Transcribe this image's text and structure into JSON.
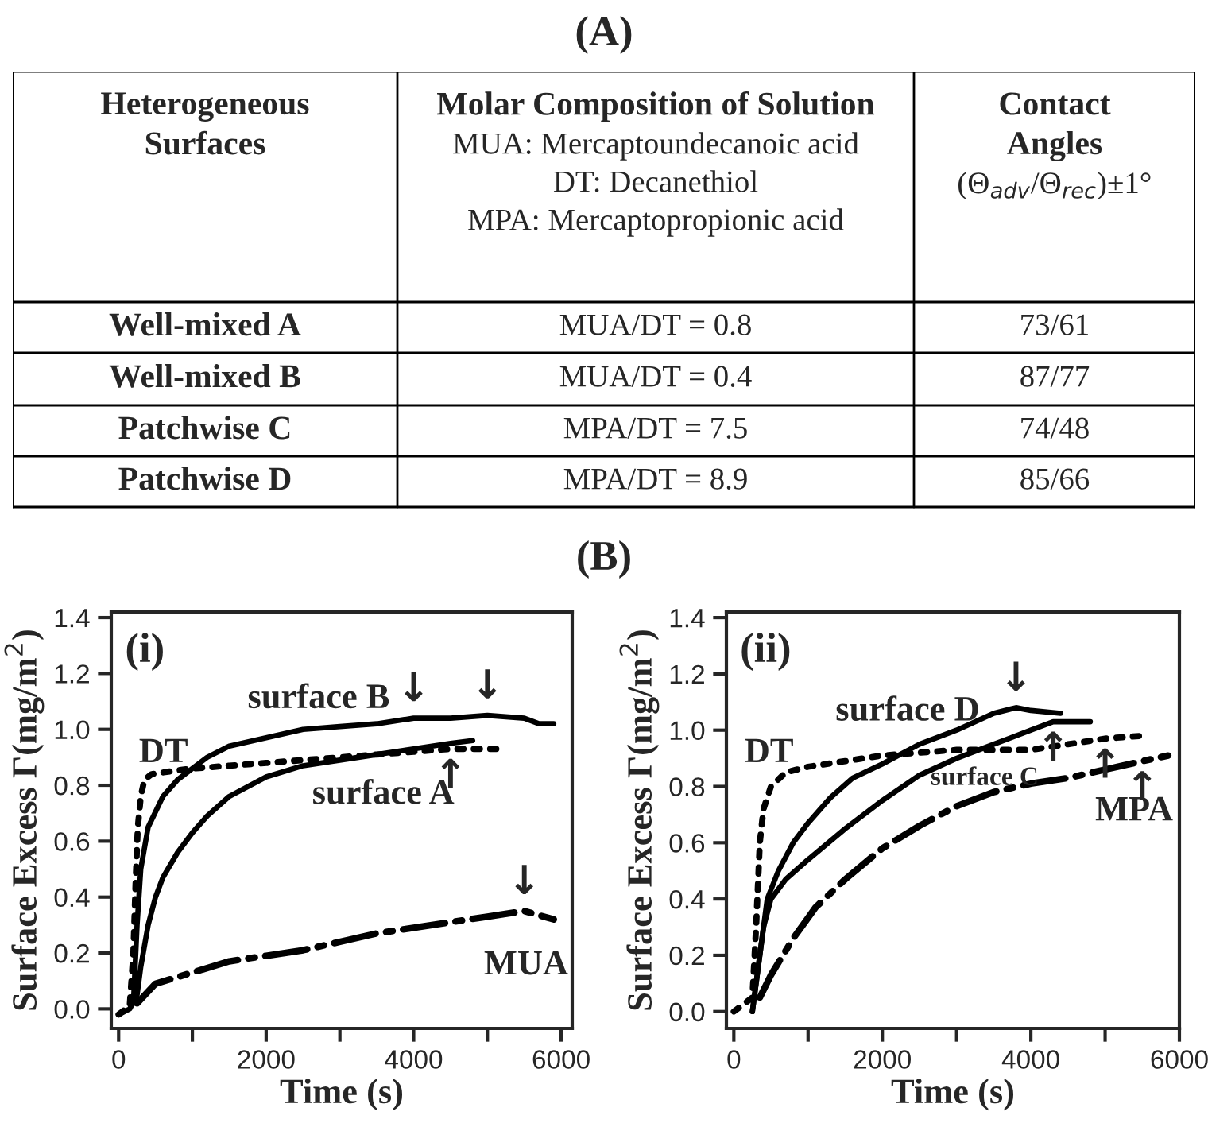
{
  "chart_data": [
    {
      "type": "other",
      "title": "(A)",
      "annotations": [
        "Heterogeneous\nSurfaces",
        "Molar Composition of Solution\nMUA: Mercaptoundecanoic acid\nDT: Decanethiol\nMPA: Mercaptopropionic acid",
        "Contact\nAngles\n(Θ$_{adv}$/Θ$_{rec}$)±1°",
        "Well-mixed A",
        "MUA/DT = 0.8",
        "73/61",
        "Well-mixed B",
        "MUA/DT = 0.4",
        "87/77",
        "Patchwise C",
        "MPA/DT = 7.5",
        "74/48",
        "Patchwise D",
        "MPA/DT = 8.9",
        "85/66"
      ]
    },
    {
      "type": "line",
      "title": "(B)",
      "xlabel": "Time (s)",
      "ylabel": "Surface Excess Γ(mg/m$^{2}$)",
      "xlim": [
        -100,
        6150
      ],
      "ylim": [
        -0.07,
        1.42
      ],
      "xticks": [
        0,
        {
          "value": 1000,
          "label": null
        },
        2000,
        {
          "value": 3000,
          "label": null
        },
        4000,
        {
          "value": 5000,
          "label": null
        },
        6000
      ],
      "yticks": [
        {
          "value": 0,
          "label": "0.0"
        },
        {
          "value": 0.2,
          "label": "0.2"
        },
        {
          "value": 0.4,
          "label": "0.4"
        },
        {
          "value": 0.6,
          "label": "0.6"
        },
        {
          "value": 0.8,
          "label": "0.8"
        },
        {
          "value": 1.0,
          "label": "1.0"
        },
        {
          "value": 1.2,
          "label": "1.2"
        },
        {
          "value": 1.4,
          "label": "1.4"
        }
      ],
      "grid": false,
      "legend": false,
      "series": [
        {
          "name": "DT",
          "color": "#000000",
          "line_style": "dotted",
          "x": [
            0,
            100,
            150,
            200,
            230,
            260,
            300,
            350,
            450,
            700,
            1000,
            1500,
            2000,
            2500,
            3000,
            3500,
            4000,
            4500,
            5200
          ],
          "values": [
            -0.02,
            0,
            0.01,
            0.2,
            0.45,
            0.65,
            0.76,
            0.82,
            0.84,
            0.85,
            0.86,
            0.87,
            0.88,
            0.89,
            0.9,
            0.91,
            0.92,
            0.93,
            0.93
          ]
        },
        {
          "name": "surface B",
          "color": "#000000",
          "line_style": "solid",
          "x": [
            200,
            250,
            300,
            400,
            600,
            800,
            1000,
            1200,
            1500,
            2000,
            2500,
            3000,
            3500,
            4000,
            4500,
            5000,
            5500,
            5700,
            5900
          ],
          "values": [
            0.02,
            0.3,
            0.5,
            0.65,
            0.76,
            0.82,
            0.86,
            0.9,
            0.94,
            0.97,
            1.0,
            1.01,
            1.02,
            1.04,
            1.04,
            1.05,
            1.04,
            1.02,
            1.02
          ]
        },
        {
          "name": "surface A",
          "color": "#000000",
          "line_style": "solid",
          "x": [
            0,
            150,
            250,
            300,
            400,
            500,
            600,
            800,
            1000,
            1200,
            1500,
            2000,
            2500,
            3000,
            3500,
            4000,
            4500,
            4800
          ],
          "values": [
            -0.02,
            0,
            0.05,
            0.15,
            0.3,
            0.4,
            0.47,
            0.56,
            0.63,
            0.69,
            0.76,
            0.83,
            0.87,
            0.89,
            0.91,
            0.93,
            0.95,
            0.96
          ]
        },
        {
          "name": "MUA",
          "color": "#000000",
          "line_style": "dashdot",
          "x": [
            250,
            500,
            1000,
            1500,
            2000,
            2500,
            3000,
            3500,
            4000,
            4500,
            5000,
            5500,
            5900
          ],
          "values": [
            0.02,
            0.09,
            0.13,
            0.17,
            0.19,
            0.21,
            0.24,
            0.27,
            0.29,
            0.31,
            0.33,
            0.35,
            0.32
          ]
        }
      ],
      "annotations": [
        "(i)",
        {
          "text": "↓",
          "x": 4000,
          "y": 1.04
        },
        {
          "text": "↓",
          "x": 5000,
          "y": 1.05
        },
        {
          "text": "↑",
          "x": 4500,
          "y": 0.93
        },
        {
          "text": "↓",
          "x": 5500,
          "y": 0.35
        }
      ]
    },
    {
      "type": "line",
      "xlabel": "Time (s)",
      "ylabel": "Surface Excess Γ(mg/m$^{2}$)",
      "xlim": [
        -100,
        6000
      ],
      "ylim": [
        -0.06,
        1.42
      ],
      "xticks": [
        0,
        {
          "value": 1000,
          "label": null
        },
        2000,
        {
          "value": 3000,
          "label": null
        },
        4000,
        {
          "value": 5000,
          "label": null
        },
        6000
      ],
      "yticks": [
        {
          "value": 0,
          "label": "0.0"
        },
        {
          "value": 0.2,
          "label": "0.2"
        },
        {
          "value": 0.4,
          "label": "0.4"
        },
        {
          "value": 0.6,
          "label": "0.6"
        },
        {
          "value": 0.8,
          "label": "0.8"
        },
        {
          "value": 1.0,
          "label": "1.0"
        },
        {
          "value": 1.2,
          "label": "1.2"
        },
        {
          "value": 1.4,
          "label": "1.4"
        }
      ],
      "grid": false,
      "legend": false,
      "series": [
        {
          "name": "DT",
          "color": "#000000",
          "line_style": "dotted",
          "x": [
            0,
            250,
            300,
            350,
            400,
            500,
            700,
            1000,
            1500,
            2000,
            2500,
            3000,
            3500,
            4000,
            4500,
            5000,
            5500
          ],
          "values": [
            0,
            0.05,
            0.3,
            0.6,
            0.72,
            0.8,
            0.85,
            0.87,
            0.89,
            0.91,
            0.92,
            0.93,
            0.93,
            0.93,
            0.95,
            0.97,
            0.98
          ]
        },
        {
          "name": "surface D",
          "color": "#000000",
          "line_style": "solid",
          "x": [
            250,
            350,
            450,
            600,
            800,
            1000,
            1300,
            1600,
            2000,
            2500,
            3000,
            3500,
            3800,
            4000,
            4400
          ],
          "values": [
            0,
            0.2,
            0.4,
            0.5,
            0.6,
            0.67,
            0.76,
            0.83,
            0.88,
            0.95,
            1.0,
            1.06,
            1.08,
            1.07,
            1.06
          ]
        },
        {
          "name": "surface C",
          "color": "#000000",
          "line_style": "solid",
          "x": [
            250,
            400,
            500,
            700,
            1000,
            1500,
            2000,
            2500,
            3000,
            3500,
            4000,
            4300,
            4500,
            4800
          ],
          "values": [
            0,
            0.3,
            0.4,
            0.47,
            0.54,
            0.65,
            0.75,
            0.84,
            0.9,
            0.95,
            1.0,
            1.03,
            1.03,
            1.03
          ]
        },
        {
          "name": "MPA",
          "color": "#000000",
          "line_style": "dashdot",
          "x": [
            350,
            500,
            800,
            1100,
            1500,
            2000,
            2500,
            3000,
            3500,
            4000,
            4500,
            5000,
            5500,
            5850
          ],
          "values": [
            0.05,
            0.13,
            0.26,
            0.37,
            0.47,
            0.58,
            0.66,
            0.73,
            0.78,
            0.81,
            0.83,
            0.86,
            0.89,
            0.91
          ]
        }
      ],
      "annotations": [
        "(ii)",
        {
          "text": "↓",
          "x": 3800,
          "y": 1.08
        },
        {
          "text": "↑",
          "x": 4300,
          "y": 1.03
        },
        {
          "text": "↑",
          "x": 5000,
          "y": 0.97
        },
        {
          "text": "↑",
          "x": 5500,
          "y": 0.89
        }
      ]
    }
  ]
}
